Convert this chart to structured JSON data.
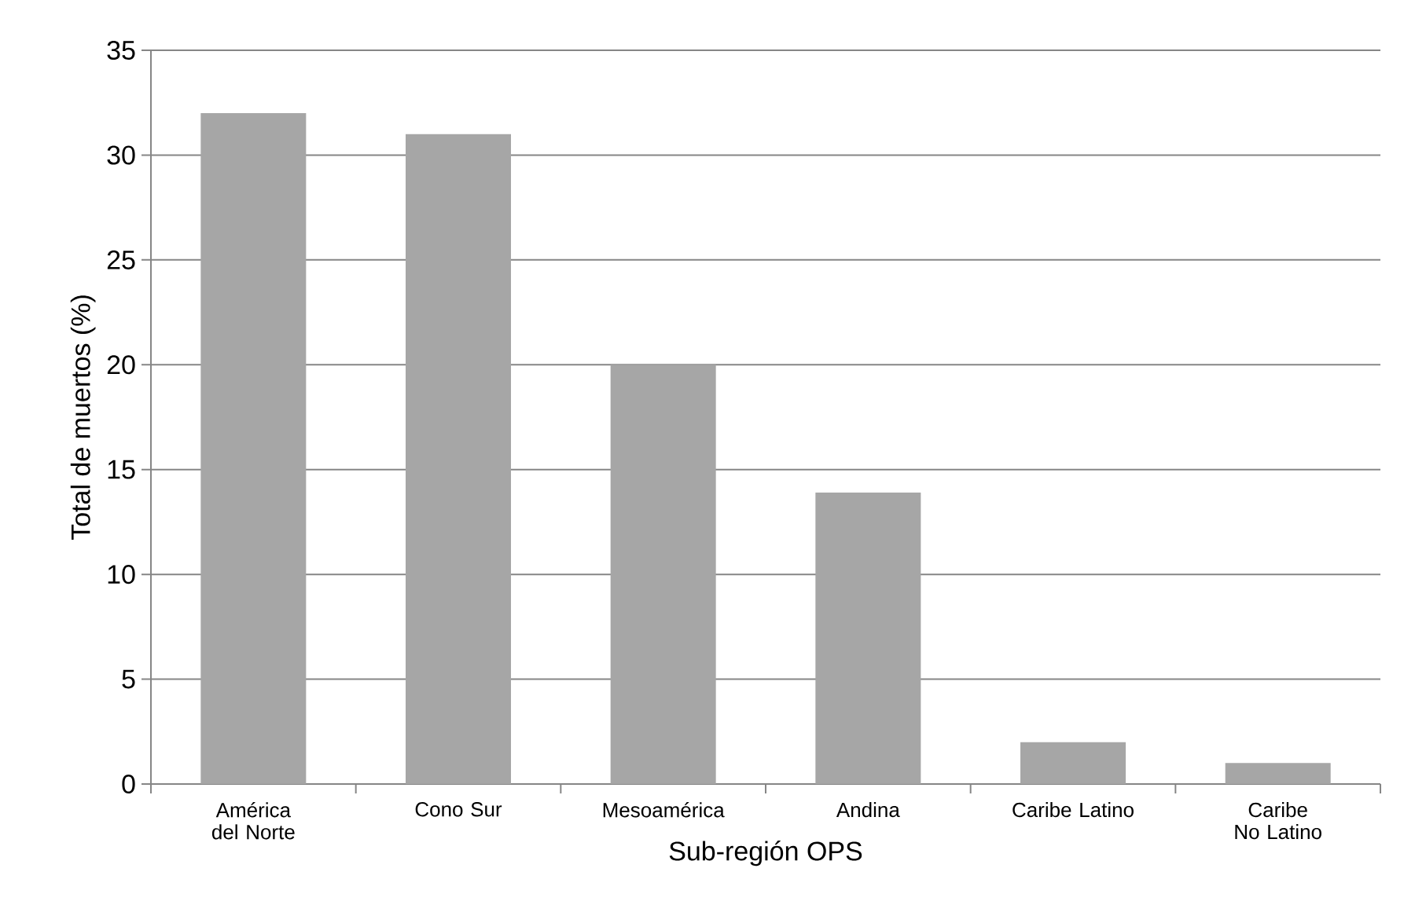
{
  "chart_data": {
    "type": "bar",
    "xlabel": "Sub-región  OPS",
    "ylabel": "Total de muertos (%)",
    "categories": [
      "América del Norte",
      "Cono Sur",
      "Mesoamérica",
      "Andina",
      "Caribe Latino",
      "Caribe No Latino"
    ],
    "values": [
      32,
      31,
      20,
      13.9,
      2,
      1
    ],
    "color": "#a6a6a6",
    "ylim": [
      0,
      35
    ],
    "yticks": [
      0,
      5,
      10,
      15,
      20,
      25,
      30,
      35
    ],
    "grid": "y"
  }
}
